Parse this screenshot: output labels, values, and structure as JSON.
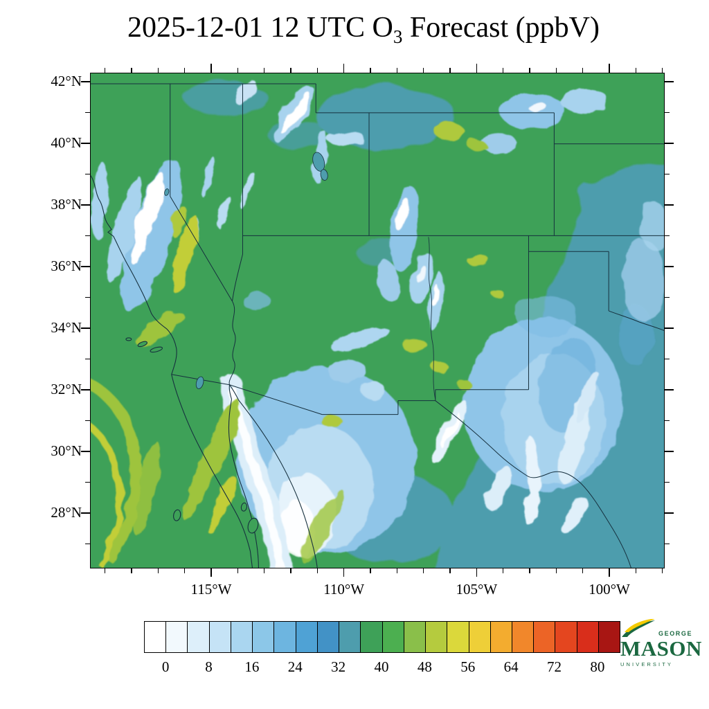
{
  "title": {
    "prefix": "2025-12-01 12 UTC O",
    "subscript": "3",
    "suffix": " Forecast (ppbV)"
  },
  "logo": {
    "top": "GEORGE",
    "name": "MASON",
    "bottom": "UNIVERSITY"
  },
  "chart_data": {
    "type": "heatmap",
    "title": "2025-12-01 12 UTC O3 Forecast (ppbV)",
    "variable": "O3",
    "units": "ppbV",
    "region": "Southwestern United States and northern Mexico",
    "x_tick_labels": [
      "115°W",
      "110°W",
      "105°W",
      "100°W"
    ],
    "y_tick_labels": [
      "42°N",
      "40°N",
      "38°N",
      "36°N",
      "34°N",
      "32°N",
      "30°N",
      "28°N"
    ],
    "lon_extent_deg_west": [
      119.6,
      97.9
    ],
    "lat_extent_deg_north": [
      26.2,
      42.3
    ],
    "grid": false,
    "colorbar": {
      "tick_values": [
        0,
        8,
        16,
        24,
        32,
        40,
        48,
        56,
        64,
        72,
        80
      ],
      "level_min": -4,
      "level_max": 84,
      "level_step": 4,
      "colors": [
        "#FFFFFF",
        "#F2F9FD",
        "#DDEFFA",
        "#C5E3F6",
        "#AAD6F0",
        "#8CC7E8",
        "#6DB5E0",
        "#4FA2D5",
        "#4292C6",
        "#4E9DAD",
        "#3EA158",
        "#4CAF50",
        "#8ABF4A",
        "#B5CB3E",
        "#DBD83B",
        "#EECF38",
        "#F3AC2F",
        "#F1872B",
        "#EC6426",
        "#E4461F",
        "#D92E1B",
        "#A81613"
      ]
    },
    "value_summary": "Simulated surface ozone mostly 24-40 ppbV (teal to green); 0-16 ppbV (white to light blue) over the Sierra Nevada, southern Arizona/Sonora, the Gulf of California, the Rockies and west Texas; 40-48 ppbV (yellow-green) over Baja California, the southern California coast, offshore Pacific bands and scattered high terrain."
  }
}
